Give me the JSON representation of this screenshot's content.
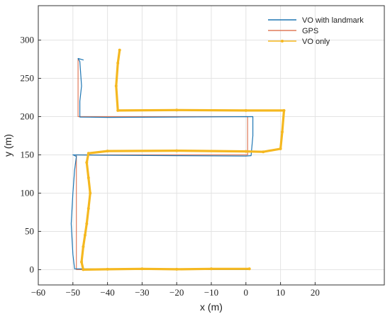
{
  "chart_data": {
    "type": "line",
    "xlabel": "x (m)",
    "ylabel": "y (m)",
    "xlim": [
      -60,
      40
    ],
    "ylim": [
      -20,
      345
    ],
    "xticks": [
      -60,
      -50,
      -40,
      -30,
      -20,
      -10,
      0,
      10,
      20
    ],
    "yticks": [
      0,
      50,
      100,
      150,
      200,
      250,
      300
    ],
    "grid": true,
    "legend_position": "top-right",
    "series": [
      {
        "name": "VO with landmark",
        "color": "#1f77b4",
        "points": [
          [
            1,
            0
          ],
          [
            -20,
            0.5
          ],
          [
            -49.5,
            1
          ],
          [
            -50,
            20
          ],
          [
            -50.5,
            60
          ],
          [
            -50,
            100
          ],
          [
            -49.5,
            130
          ],
          [
            -49,
            148
          ],
          [
            -50,
            150
          ],
          [
            -40,
            149.5
          ],
          [
            -20,
            149
          ],
          [
            0,
            148.5
          ],
          [
            1.5,
            149
          ],
          [
            2,
            175
          ],
          [
            2,
            200
          ],
          [
            -20,
            199.5
          ],
          [
            -40,
            199
          ],
          [
            -48,
            199.5
          ],
          [
            -48,
            220
          ],
          [
            -47.5,
            240
          ],
          [
            -48,
            272
          ],
          [
            -48.5,
            276
          ],
          [
            -47,
            274
          ]
        ]
      },
      {
        "name": "GPS",
        "color": "#e07b5a",
        "points": [
          [
            1,
            0
          ],
          [
            -20,
            0
          ],
          [
            -49,
            0
          ],
          [
            -49,
            50
          ],
          [
            -49,
            100
          ],
          [
            -49,
            150
          ],
          [
            -20,
            150
          ],
          [
            0.5,
            150
          ],
          [
            0.5,
            175
          ],
          [
            0.5,
            200
          ],
          [
            -20,
            200
          ],
          [
            -48.5,
            200
          ],
          [
            -48.5,
            240
          ],
          [
            -48.5,
            275
          ]
        ]
      },
      {
        "name": "VO only",
        "color": "#f5b820",
        "points": [
          [
            1,
            1
          ],
          [
            -10,
            1
          ],
          [
            -20,
            0.5
          ],
          [
            -30,
            1
          ],
          [
            -40,
            0.5
          ],
          [
            -47,
            0
          ],
          [
            -47.5,
            10
          ],
          [
            -47,
            30
          ],
          [
            -46.5,
            45
          ],
          [
            -46,
            60
          ],
          [
            -45.5,
            80
          ],
          [
            -45,
            100
          ],
          [
            -45.5,
            120
          ],
          [
            -46,
            140
          ],
          [
            -45.5,
            152
          ],
          [
            -40,
            155
          ],
          [
            -20,
            155.5
          ],
          [
            0,
            154.5
          ],
          [
            5,
            154
          ],
          [
            10,
            158
          ],
          [
            10.5,
            180
          ],
          [
            11,
            208
          ],
          [
            0,
            208
          ],
          [
            -20,
            208.5
          ],
          [
            -37,
            208
          ],
          [
            -37.5,
            240
          ],
          [
            -37,
            270
          ],
          [
            -36.5,
            287
          ]
        ]
      }
    ]
  }
}
